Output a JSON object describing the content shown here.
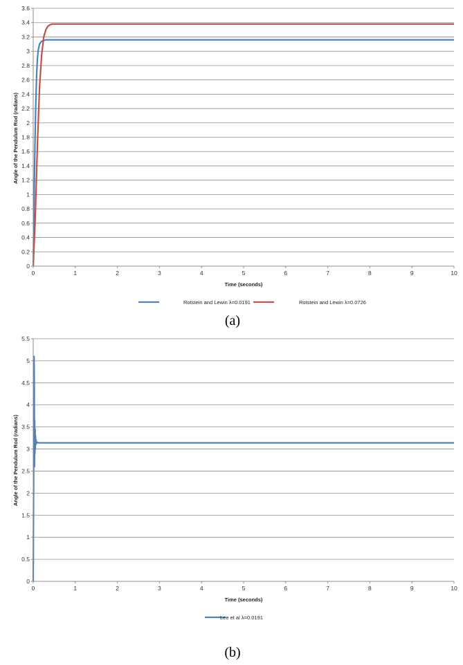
{
  "chart_data": [
    {
      "type": "line",
      "panel": "a",
      "caption": "(a)",
      "xlabel": "Time (seconds)",
      "ylabel": "Angle of the Pendulum Rod (radians)",
      "xlim": [
        0,
        10
      ],
      "ylim": [
        0,
        3.6
      ],
      "xticks": [
        "0",
        "1",
        "2",
        "3",
        "4",
        "5",
        "6",
        "7",
        "8",
        "9",
        "10"
      ],
      "yticks": [
        "0",
        "0.2",
        "0.4",
        "0.6",
        "0.8",
        "1",
        "1.2",
        "1.4",
        "1.6",
        "1.8",
        "2",
        "2.2",
        "2.4",
        "2.6",
        "2.8",
        "3",
        "3.2",
        "3.4",
        "3.6"
      ],
      "grid": true,
      "legend_position": "bottom",
      "series": [
        {
          "name": "Rotstein and Lewin λ=0.0191",
          "color": "#4f81bd",
          "x": [
            0,
            0.02,
            0.04,
            0.06,
            0.08,
            0.1,
            0.12,
            0.15,
            0.2,
            0.25,
            0.3,
            10
          ],
          "y": [
            0,
            0.9,
            1.65,
            2.25,
            2.65,
            2.9,
            3.02,
            3.1,
            3.14,
            3.15,
            3.16,
            3.16
          ]
        },
        {
          "name": "Rotstein and Lewin λ=0.0726",
          "color": "#c0504d",
          "x": [
            0,
            0.05,
            0.1,
            0.15,
            0.2,
            0.25,
            0.3,
            0.35,
            0.4,
            0.45,
            0.5,
            10
          ],
          "y": [
            0,
            0.7,
            1.7,
            2.5,
            2.95,
            3.2,
            3.3,
            3.35,
            3.37,
            3.38,
            3.38,
            3.38
          ]
        }
      ]
    },
    {
      "type": "line",
      "panel": "b",
      "caption": "(b)",
      "xlabel": "Time (seconds)",
      "ylabel": "Angle of the Pendulum Rod (radians)",
      "xlim": [
        0,
        10
      ],
      "ylim": [
        0,
        5.5
      ],
      "xticks": [
        "0",
        "1",
        "2",
        "3",
        "4",
        "5",
        "6",
        "7",
        "8",
        "9",
        "10"
      ],
      "yticks": [
        "0",
        "0.5",
        "1",
        "1.5",
        "2",
        "2.5",
        "3",
        "3.5",
        "4",
        "4.5",
        "5",
        "5.5"
      ],
      "grid": true,
      "legend_position": "bottom",
      "series": [
        {
          "name": "Lee et al λ=0.0191",
          "color": "#4f81bd",
          "x": [
            0,
            0.01,
            0.015,
            0.02,
            0.025,
            0.03,
            0.035,
            0.04,
            0.045,
            0.05,
            0.055,
            0.06,
            0.07,
            0.08,
            0.1,
            0.12,
            10
          ],
          "y": [
            0,
            2.2,
            4.2,
            5.1,
            4.6,
            2.6,
            3.65,
            2.9,
            3.45,
            3.0,
            3.3,
            3.1,
            3.2,
            3.13,
            3.15,
            3.14,
            3.14
          ]
        }
      ]
    }
  ]
}
